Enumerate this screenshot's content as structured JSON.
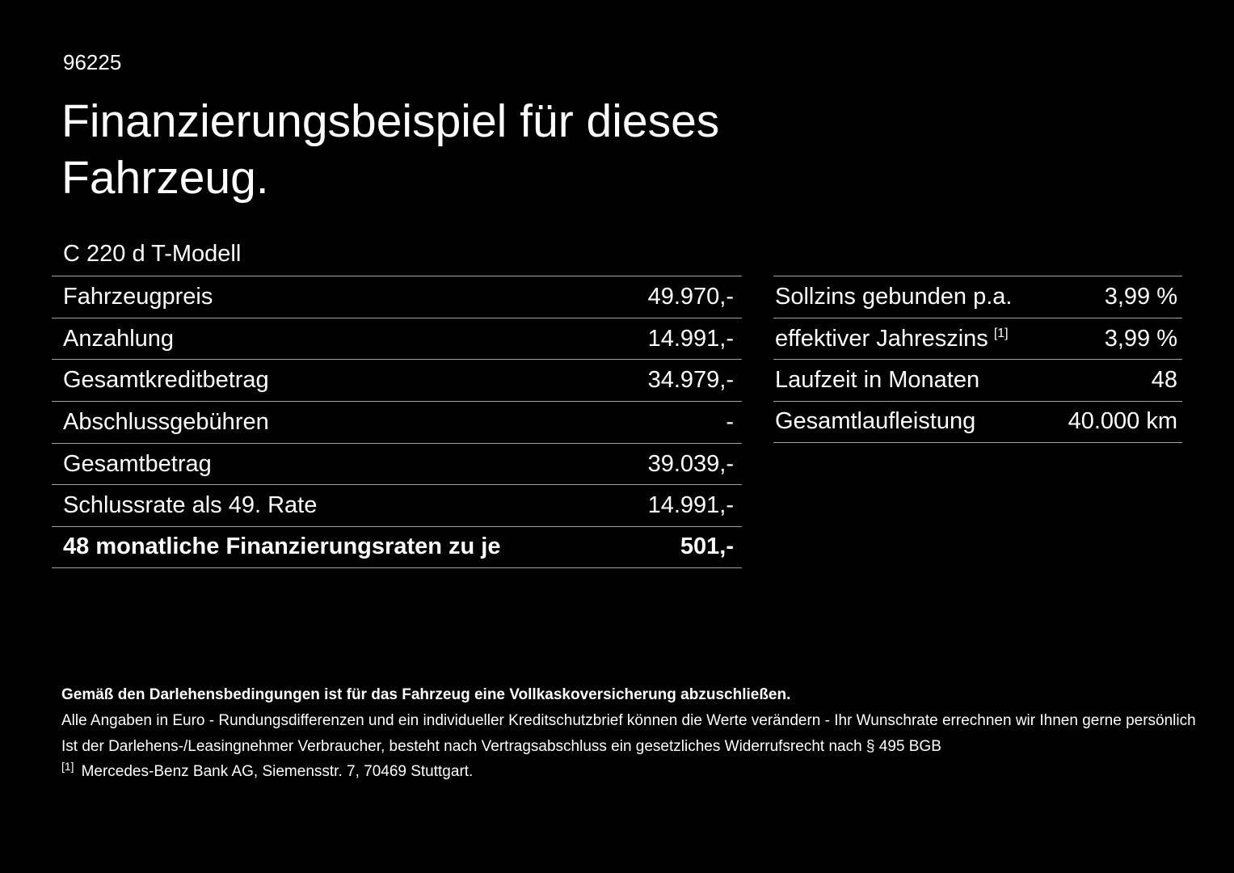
{
  "header": {
    "id": "96225",
    "title": "Finanzierungsbeispiel für dieses Fahrzeug.",
    "model": "C 220 d T-Modell"
  },
  "tables": {
    "left": {
      "rows": [
        {
          "label": "Fahrzeugpreis",
          "value": "49.970,-"
        },
        {
          "label": "Anzahlung",
          "value": "14.991,-"
        },
        {
          "label": "Gesamtkreditbetrag",
          "value": "34.979,-"
        },
        {
          "label": "Abschlussgebühren",
          "value": "-"
        },
        {
          "label": "Gesamtbetrag",
          "value": "39.039,-"
        },
        {
          "label": "Schlussrate als 49. Rate",
          "value": "14.991,-"
        },
        {
          "label": "48 monatliche Finanzierungsraten zu je",
          "value": "501,-"
        }
      ]
    },
    "right": {
      "rows": [
        {
          "label": "Sollzins gebunden p.a.",
          "value": "3,99 %"
        },
        {
          "label": "effektiver Jahreszins",
          "sup": "[1]",
          "value": "3,99 %"
        },
        {
          "label": "Laufzeit in Monaten",
          "value": "48"
        },
        {
          "label": "Gesamtlaufleistung",
          "value": "40.000 km"
        }
      ]
    }
  },
  "footer": {
    "insurance_note": "Gemäß den Darlehensbedingungen ist für das Fahrzeug eine Vollkaskoversicherung abzuschließen.",
    "note_euro": "Alle Angaben in Euro - Rundungsdifferenzen und ein individueller Kreditschutzbrief können die Werte verändern - Ihr Wunschrate errechnen wir Ihnen gerne persönlich",
    "note_widerruf": "Ist der Darlehens-/Leasingnehmer Verbraucher, besteht nach Vertragsabschluss ein gesetzliches Widerrufsrecht nach § 495 BGB",
    "footnote_marker": "[1]",
    "footnote_text": "Mercedes-Benz Bank AG, Siemensstr. 7, 70469 Stuttgart."
  }
}
